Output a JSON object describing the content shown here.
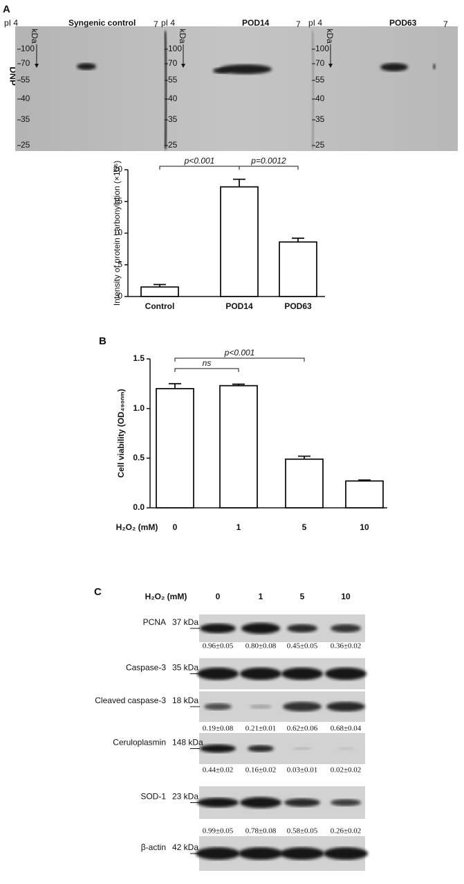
{
  "panel_a": {
    "label": "A",
    "side_label": "DNP",
    "gels": [
      {
        "pi_left": "pI 4",
        "title": "Syngenic control",
        "pi_right": "7",
        "kda": "kDa",
        "markers": [
          "100",
          "70",
          "55",
          "40",
          "35",
          "25"
        ]
      },
      {
        "pi_left": "pI 4",
        "title": "POD14",
        "pi_right": "7",
        "kda": "kDa",
        "markers": [
          "100",
          "70",
          "55",
          "40",
          "35",
          "25"
        ]
      },
      {
        "pi_left": "pI 4",
        "title": "POD63",
        "pi_right": "7",
        "kda": "kDa",
        "markers": [
          "100",
          "70",
          "55",
          "40",
          "35",
          "25"
        ]
      }
    ]
  },
  "chart_data": [
    {
      "type": "bar",
      "y_label": "Intensity of protein carbonylation (×10⁵)",
      "categories": [
        "Control",
        "POD14",
        "POD63"
      ],
      "values": [
        1.5,
        17.3,
        8.6
      ],
      "errors": [
        0.4,
        1.2,
        0.6
      ],
      "color": "#ffffff",
      "ylim": [
        0,
        20
      ],
      "yticks": [
        0,
        5,
        10,
        15,
        20
      ],
      "annotations": [
        "p<0.001",
        "p=0.0012"
      ]
    },
    {
      "type": "bar",
      "panel": "B",
      "y_label": "Cell viability (OD₄₉₀ₙₘ)",
      "x_label": "H₂O₂ (mM)",
      "categories": [
        "0",
        "1",
        "5",
        "10"
      ],
      "values": [
        1.2,
        1.23,
        0.49,
        0.27
      ],
      "errors": [
        0.05,
        0.015,
        0.03,
        0.01
      ],
      "color": "#ffffff",
      "ylim": [
        0,
        1.5
      ],
      "yticks": [
        {
          "value": 0,
          "label": "0.0"
        },
        0.5,
        {
          "value": 1,
          "label": "1.0"
        },
        1.5
      ],
      "annotations": [
        "ns",
        "p<0.001"
      ]
    }
  ],
  "panel_c": {
    "label": "C",
    "treatment_label": "H₂O₂ (mM)",
    "doses": [
      "0",
      "1",
      "5",
      "10"
    ],
    "blots": [
      {
        "protein": "PCNA",
        "kda": "37 kDa",
        "quant": [
          "0.96±0.05",
          "0.80±0.08",
          "0.45±0.05",
          "0.36±0.02"
        ]
      },
      {
        "protein": "Caspase-3",
        "kda": "35 kDa"
      },
      {
        "protein": "Cleaved caspase-3",
        "kda": "18 kDa",
        "quant": [
          "0.19±0.08",
          "0.21±0.01",
          "0.62±0.06",
          "0.68±0.04"
        ]
      },
      {
        "protein": "Ceruloplasmin",
        "kda": "148 kDa",
        "quant": [
          "0.44±0.02",
          "0.16±0.02",
          "0.03±0.01",
          "0.02±0.02"
        ]
      },
      {
        "protein": "SOD-1",
        "kda": "23 kDa",
        "quant": [
          "0.99±0.05",
          "0.78±0.08",
          "0.58±0.05",
          "0.26±0.02"
        ]
      },
      {
        "protein": "β-actin",
        "kda": "42 kDa"
      }
    ]
  }
}
